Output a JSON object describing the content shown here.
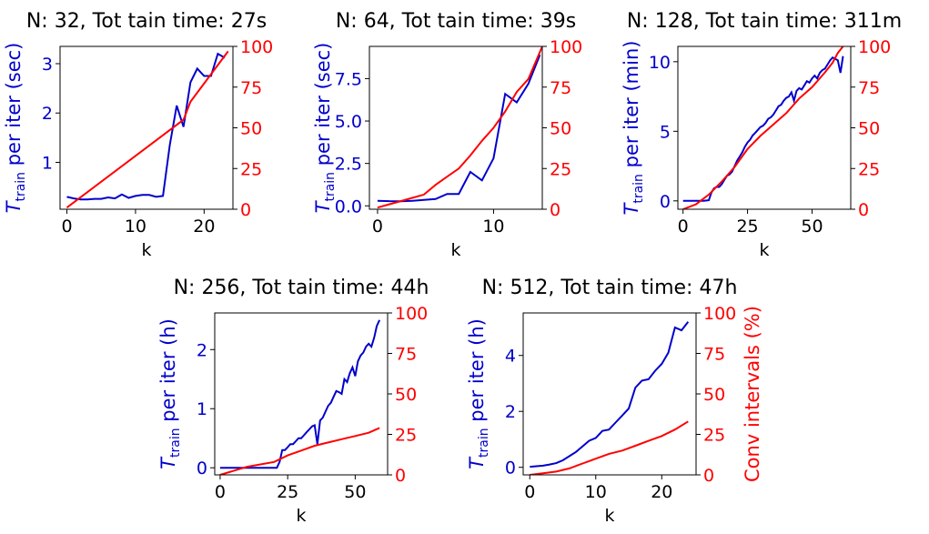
{
  "colors": {
    "left": "#0000cc",
    "right": "#ff0000",
    "axis": "#000000"
  },
  "chart_data": [
    {
      "type": "line",
      "title": "N: 32, Tot tain time: 27s",
      "xlabel": "k",
      "ylabel_main": "T",
      "ylabel_sub": "train",
      "ylabel_rest": " per iter (sec)",
      "xlim": [
        -1,
        24.2
      ],
      "ylim_left": [
        0.05,
        3.35
      ],
      "ylim_right": [
        0,
        100
      ],
      "xticks": [
        0,
        10,
        20
      ],
      "xtick_labels": [
        "0",
        "10",
        "20"
      ],
      "yticks_left": [
        1,
        2,
        3
      ],
      "ytick_labels_left": [
        "1",
        "2",
        "3"
      ],
      "yticks_right": [
        0,
        25,
        50,
        75,
        100
      ],
      "ytick_labels_right": [
        "0",
        "25",
        "50",
        "75",
        "100"
      ],
      "series_left": {
        "name": "T_train per iter",
        "x": [
          0,
          1,
          2,
          3,
          4,
          5,
          6,
          7,
          8,
          9,
          10,
          11,
          12,
          13,
          14,
          15,
          16,
          17,
          18,
          19,
          20,
          21,
          22,
          23
        ],
        "y": [
          0.3,
          0.27,
          0.25,
          0.25,
          0.26,
          0.26,
          0.29,
          0.27,
          0.35,
          0.28,
          0.32,
          0.34,
          0.34,
          0.3,
          0.32,
          1.35,
          2.15,
          1.72,
          2.62,
          2.9,
          2.75,
          2.75,
          3.2,
          3.12
        ]
      },
      "series_right": {
        "name": "Conv intervals (%)",
        "x": [
          0,
          17,
          18,
          23.5
        ],
        "y": [
          1,
          55,
          66,
          97
        ]
      }
    },
    {
      "type": "line",
      "title": "N: 64, Tot tain time: 39s",
      "xlabel": "k",
      "ylabel_main": "T",
      "ylabel_sub": "train",
      "ylabel_rest": " per iter (sec)",
      "xlim": [
        -0.7,
        14.2
      ],
      "ylim_left": [
        -0.2,
        9.4
      ],
      "ylim_right": [
        0,
        100
      ],
      "xticks": [
        0,
        10
      ],
      "xtick_labels": [
        "0",
        "10"
      ],
      "yticks_left": [
        0,
        2.5,
        5,
        7.5
      ],
      "ytick_labels_left": [
        "0.0",
        "2.5",
        "5.0",
        "7.5"
      ],
      "yticks_right": [
        0,
        25,
        50,
        75,
        100
      ],
      "ytick_labels_right": [
        "0",
        "25",
        "50",
        "75",
        "100"
      ],
      "series_left": {
        "name": "T_train per iter",
        "x": [
          0,
          1,
          2,
          3,
          4,
          5,
          6,
          7,
          8,
          9,
          10,
          11,
          12,
          13,
          14
        ],
        "y": [
          0.3,
          0.28,
          0.27,
          0.3,
          0.35,
          0.4,
          0.7,
          0.7,
          2.0,
          1.5,
          2.8,
          6.6,
          6.1,
          7.2,
          8.9
        ]
      },
      "series_right": {
        "name": "Conv intervals (%)",
        "x": [
          0,
          1,
          2,
          3,
          4,
          5,
          6,
          7,
          8,
          9,
          10,
          11,
          12,
          13,
          14.2
        ],
        "y": [
          1,
          3,
          5,
          7,
          9,
          15,
          20,
          25,
          33,
          42,
          50,
          60,
          72,
          80,
          100
        ]
      }
    },
    {
      "type": "line",
      "title": "N: 128, Tot tain time: 311m",
      "xlabel": "k",
      "ylabel_main": "T",
      "ylabel_sub": "train",
      "ylabel_rest": " per iter (min)",
      "xlim": [
        -2,
        65
      ],
      "ylim_left": [
        -0.6,
        11.1
      ],
      "ylim_right": [
        0,
        100
      ],
      "xticks": [
        0,
        25,
        50
      ],
      "xtick_labels": [
        "0",
        "25",
        "50"
      ],
      "yticks_left": [
        0,
        5,
        10
      ],
      "ytick_labels_left": [
        "0",
        "5",
        "10"
      ],
      "yticks_right": [
        0,
        25,
        50,
        75,
        100
      ],
      "ytick_labels_right": [
        "0",
        "25",
        "50",
        "75",
        "100"
      ],
      "series_left": {
        "name": "T_train per iter",
        "x": [
          0,
          2,
          4,
          6,
          8,
          10,
          11,
          12,
          13,
          14,
          15,
          16,
          17,
          18,
          19,
          20,
          21,
          22,
          23,
          24,
          25,
          26,
          27,
          28,
          29,
          30,
          31,
          32,
          33,
          34,
          35,
          36,
          37,
          38,
          39,
          40,
          41,
          42,
          43,
          44,
          45,
          46,
          47,
          48,
          49,
          50,
          51,
          52,
          53,
          54,
          55,
          56,
          57,
          58,
          59,
          60,
          61,
          62
        ],
        "y": [
          0,
          0,
          0,
          0,
          0,
          0.05,
          0.6,
          0.9,
          1.0,
          1.0,
          1.2,
          1.5,
          1.8,
          1.9,
          2.1,
          2.5,
          2.9,
          3.2,
          3.5,
          3.9,
          4.2,
          4.4,
          4.7,
          4.9,
          5.1,
          5.3,
          5.4,
          5.6,
          5.9,
          6.0,
          6.2,
          6.5,
          6.8,
          6.9,
          7.2,
          7.4,
          7.5,
          7.8,
          7.2,
          7.9,
          8.1,
          8.0,
          8.3,
          8.6,
          8.5,
          8.8,
          9.0,
          8.8,
          9.2,
          9.4,
          9.5,
          9.8,
          10.1,
          10.3,
          10.2,
          10.1,
          9.2,
          10.4
        ]
      },
      "series_right": {
        "name": "Conv intervals (%)",
        "x": [
          0,
          5,
          10,
          15,
          20,
          25,
          30,
          35,
          40,
          45,
          50,
          55,
          58,
          60,
          62
        ],
        "y": [
          0,
          3,
          9,
          17,
          26,
          37,
          45,
          52,
          59,
          68,
          75,
          84,
          90,
          96,
          100
        ]
      }
    },
    {
      "type": "line",
      "title": "N: 256, Tot tain time: 44h",
      "xlabel": "k",
      "ylabel_main": "T",
      "ylabel_sub": "train",
      "ylabel_rest": " per iter (h)",
      "xlim": [
        -2,
        62
      ],
      "ylim_left": [
        -0.12,
        2.62
      ],
      "ylim_right": [
        0,
        100
      ],
      "xticks": [
        0,
        25,
        50
      ],
      "xtick_labels": [
        "0",
        "25",
        "50"
      ],
      "yticks_left": [
        0,
        1,
        2
      ],
      "ytick_labels_left": [
        "0",
        "1",
        "2"
      ],
      "yticks_right": [
        0,
        25,
        50,
        75,
        100
      ],
      "ytick_labels_right": [
        "0",
        "25",
        "50",
        "75",
        "100"
      ],
      "series_left": {
        "name": "T_train per iter",
        "x": [
          0,
          5,
          10,
          15,
          20,
          21,
          22,
          23,
          24,
          25,
          26,
          27,
          28,
          29,
          30,
          31,
          32,
          33,
          34,
          35,
          36,
          37,
          38,
          39,
          40,
          41,
          42,
          43,
          44,
          45,
          46,
          47,
          48,
          49,
          50,
          51,
          52,
          53,
          54,
          55,
          56,
          57,
          58,
          59
        ],
        "y": [
          0,
          0,
          0,
          0,
          0,
          0,
          0.1,
          0.3,
          0.3,
          0.35,
          0.4,
          0.4,
          0.45,
          0.5,
          0.5,
          0.55,
          0.6,
          0.65,
          0.7,
          0.72,
          0.4,
          0.8,
          0.85,
          0.95,
          1.05,
          1.1,
          1.2,
          1.3,
          1.28,
          1.25,
          1.5,
          1.45,
          1.6,
          1.7,
          1.55,
          1.8,
          1.9,
          1.95,
          2.05,
          2.1,
          2.05,
          2.2,
          2.4,
          2.5
        ]
      },
      "series_right": {
        "name": "Conv intervals (%)",
        "x": [
          0,
          10,
          20,
          25,
          30,
          35,
          40,
          45,
          50,
          55,
          59
        ],
        "y": [
          0,
          5,
          8,
          12,
          15,
          18,
          20,
          22,
          24,
          26,
          29
        ]
      }
    },
    {
      "type": "line",
      "title": "N: 512, Tot tain time: 47h",
      "xlabel": "k",
      "ylabel_main": "T",
      "ylabel_sub": "train",
      "ylabel_rest": " per iter (h)",
      "ylabel_right": "Conv intervals (%)",
      "xlim": [
        -1,
        25.2
      ],
      "ylim_left": [
        -0.27,
        5.52
      ],
      "ylim_right": [
        0,
        100
      ],
      "xticks": [
        0,
        10,
        20
      ],
      "xtick_labels": [
        "0",
        "10",
        "20"
      ],
      "yticks_left": [
        0,
        2,
        4
      ],
      "ytick_labels_left": [
        "0",
        "2",
        "4"
      ],
      "yticks_right": [
        0,
        25,
        50,
        75,
        100
      ],
      "ytick_labels_right": [
        "0",
        "25",
        "50",
        "75",
        "100"
      ],
      "series_left": {
        "name": "T_train per iter",
        "x": [
          0,
          1,
          2,
          3,
          4,
          5,
          6,
          7,
          8,
          9,
          10,
          11,
          12,
          13,
          14,
          15,
          16,
          17,
          18,
          19,
          20,
          21,
          22,
          23,
          24
        ],
        "y": [
          0.02,
          0.04,
          0.06,
          0.1,
          0.15,
          0.25,
          0.4,
          0.55,
          0.75,
          0.95,
          1.05,
          1.3,
          1.35,
          1.6,
          1.85,
          2.1,
          2.85,
          3.1,
          3.15,
          3.45,
          3.7,
          4.1,
          5.0,
          4.9,
          5.2
        ]
      },
      "series_right": {
        "name": "Conv intervals (%)",
        "x": [
          0,
          2,
          4,
          6,
          8,
          10,
          12,
          14,
          16,
          18,
          20,
          22,
          24
        ],
        "y": [
          0,
          1,
          2,
          4,
          7,
          10,
          13,
          15,
          18,
          21,
          24,
          28,
          33
        ]
      }
    }
  ]
}
